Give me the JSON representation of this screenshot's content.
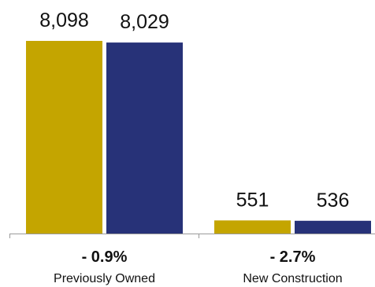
{
  "chart_data": {
    "type": "bar",
    "categories": [
      "Previously Owned",
      "New Construction"
    ],
    "series": [
      {
        "values": [
          8098,
          551
        ],
        "labels": [
          "8,098",
          "551"
        ]
      },
      {
        "values": [
          8029,
          536
        ],
        "labels": [
          "8,029",
          "536"
        ]
      }
    ],
    "change_labels": [
      "- 0.9%",
      "- 2.7%"
    ],
    "ylim": [
      0,
      8098
    ],
    "colors": [
      "#C4A500",
      "#273278"
    ],
    "axis_color": "#9a9a9a",
    "grid": false,
    "legend": "none"
  }
}
